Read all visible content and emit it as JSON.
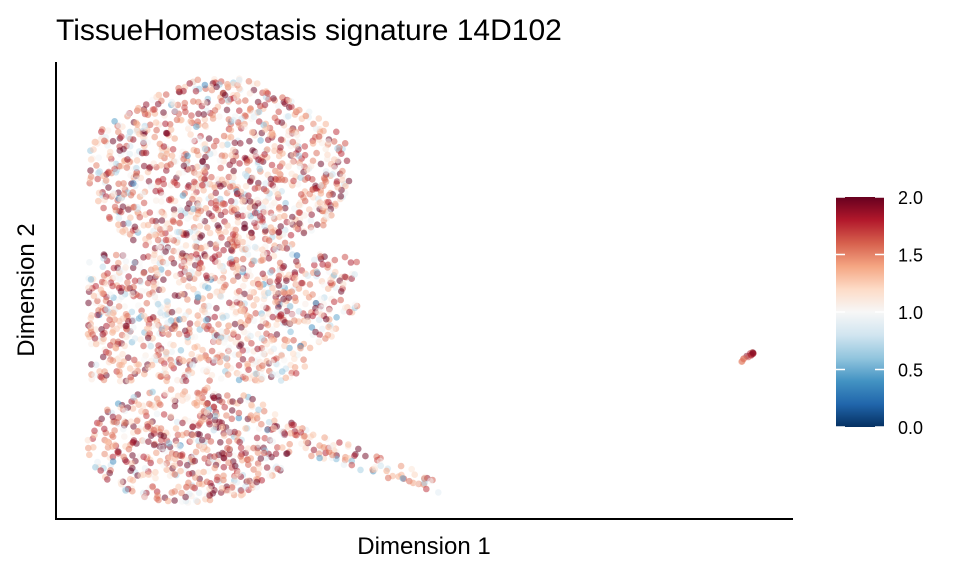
{
  "chart_data": {
    "type": "scatter",
    "title": "TissueHomeostasis signature 14D102",
    "xlabel": "Dimension 1",
    "ylabel": "Dimension 2",
    "xlim": [
      0,
      100
    ],
    "ylim": [
      0,
      100
    ],
    "x_ticks_shown": false,
    "y_ticks_shown": false,
    "grid": false,
    "legend": {
      "type": "colorbar",
      "position": "right",
      "range": [
        0.0,
        2.0
      ],
      "tick_labels": [
        "0.0",
        "0.5",
        "1.0",
        "1.5",
        "2.0"
      ],
      "colors": [
        "#053061",
        "#2166ac",
        "#4393c3",
        "#92c5de",
        "#d1e5f0",
        "#f7f7f7",
        "#fddbc7",
        "#f4a582",
        "#d6604d",
        "#b2182b",
        "#67001f"
      ]
    },
    "point_alpha": 0.5,
    "clusters": [
      {
        "region": "upper-left main cloud",
        "x_range": [
          5,
          42
        ],
        "y_range": [
          55,
          97
        ],
        "mean_value": 1.45
      },
      {
        "region": "middle-left cloud",
        "x_range": [
          4,
          42
        ],
        "y_range": [
          30,
          65
        ],
        "mean_value": 1.35
      },
      {
        "region": "lower-left cloud",
        "x_range": [
          6,
          32
        ],
        "y_range": [
          4,
          30
        ],
        "mean_value": 1.5
      },
      {
        "region": "lower tail",
        "x_range": [
          30,
          52
        ],
        "y_range": [
          5,
          20
        ],
        "mean_value": 1.35
      },
      {
        "region": "isolated right cluster",
        "x_range": [
          93,
          95
        ],
        "y_range": [
          34,
          37
        ],
        "mean_value": 1.75
      }
    ]
  }
}
